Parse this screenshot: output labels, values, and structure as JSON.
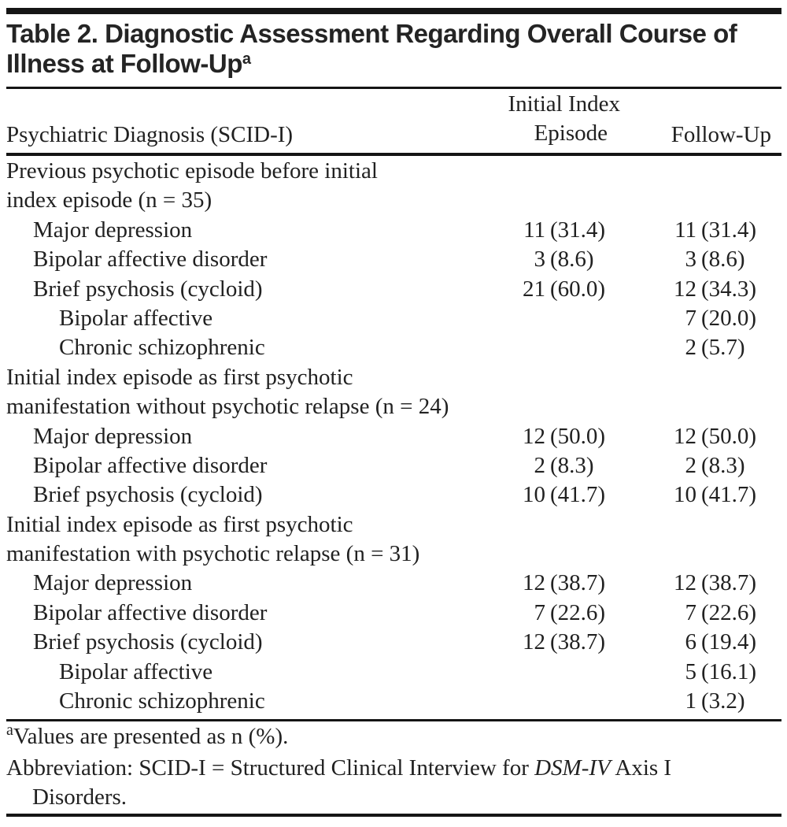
{
  "title": {
    "line1": "Table 2. Diagnostic Assessment Regarding Overall Course of",
    "line2": "Illness at Follow-Up",
    "footnote_marker": "a"
  },
  "columns": {
    "diagnosis": "Psychiatric Diagnosis (SCID-I)",
    "initial_line1": "Initial Index",
    "initial_line2": "Episode",
    "followup": "Follow-Up"
  },
  "rows": [
    {
      "level": 0,
      "label": "Previous psychotic episode before initial",
      "initial_n": "",
      "initial_pct": "",
      "followup_n": "",
      "followup_pct": ""
    },
    {
      "level": 0,
      "label": "index episode (n = 35)",
      "initial_n": "",
      "initial_pct": "",
      "followup_n": "",
      "followup_pct": ""
    },
    {
      "level": 1,
      "label": "Major depression",
      "initial_n": "11",
      "initial_pct": "(31.4)",
      "followup_n": "11",
      "followup_pct": "(31.4)"
    },
    {
      "level": 1,
      "label": "Bipolar affective disorder",
      "initial_n": "3",
      "initial_pct": "(8.6)",
      "followup_n": "3",
      "followup_pct": "(8.6)"
    },
    {
      "level": 1,
      "label": "Brief psychosis (cycloid)",
      "initial_n": "21",
      "initial_pct": "(60.0)",
      "followup_n": "12",
      "followup_pct": "(34.3)"
    },
    {
      "level": 2,
      "label": "Bipolar affective",
      "initial_n": "",
      "initial_pct": "",
      "followup_n": "7",
      "followup_pct": "(20.0)"
    },
    {
      "level": 2,
      "label": "Chronic schizophrenic",
      "initial_n": "",
      "initial_pct": "",
      "followup_n": "2",
      "followup_pct": "(5.7)"
    },
    {
      "level": 0,
      "label": "Initial index episode as first psychotic",
      "initial_n": "",
      "initial_pct": "",
      "followup_n": "",
      "followup_pct": ""
    },
    {
      "level": 0,
      "label": "manifestation without psychotic relapse (n = 24)",
      "initial_n": "",
      "initial_pct": "",
      "followup_n": "",
      "followup_pct": ""
    },
    {
      "level": 1,
      "label": "Major depression",
      "initial_n": "12",
      "initial_pct": "(50.0)",
      "followup_n": "12",
      "followup_pct": "(50.0)"
    },
    {
      "level": 1,
      "label": "Bipolar affective disorder",
      "initial_n": "2",
      "initial_pct": "(8.3)",
      "followup_n": "2",
      "followup_pct": "(8.3)"
    },
    {
      "level": 1,
      "label": "Brief psychosis (cycloid)",
      "initial_n": "10",
      "initial_pct": "(41.7)",
      "followup_n": "10",
      "followup_pct": "(41.7)"
    },
    {
      "level": 0,
      "label": "Initial index episode as first psychotic",
      "initial_n": "",
      "initial_pct": "",
      "followup_n": "",
      "followup_pct": ""
    },
    {
      "level": 0,
      "label": "manifestation with psychotic relapse (n = 31)",
      "initial_n": "",
      "initial_pct": "",
      "followup_n": "",
      "followup_pct": ""
    },
    {
      "level": 1,
      "label": "Major depression",
      "initial_n": "12",
      "initial_pct": "(38.7)",
      "followup_n": "12",
      "followup_pct": "(38.7)"
    },
    {
      "level": 1,
      "label": "Bipolar affective disorder",
      "initial_n": "7",
      "initial_pct": "(22.6)",
      "followup_n": "7",
      "followup_pct": "(22.6)"
    },
    {
      "level": 1,
      "label": "Brief psychosis (cycloid)",
      "initial_n": "12",
      "initial_pct": "(38.7)",
      "followup_n": "6",
      "followup_pct": "(19.4)"
    },
    {
      "level": 2,
      "label": "Bipolar affective",
      "initial_n": "",
      "initial_pct": "",
      "followup_n": "5",
      "followup_pct": "(16.1)"
    },
    {
      "level": 2,
      "label": "Chronic schizophrenic",
      "initial_n": "",
      "initial_pct": "",
      "followup_n": "1",
      "followup_pct": "(3.2)"
    }
  ],
  "footnotes": {
    "a_marker": "a",
    "a_text": "Values are presented as n (%).",
    "abbrev_pre": "Abbreviation: SCID-I = Structured Clinical Interview for ",
    "abbrev_italic": "DSM-IV",
    "abbrev_post": " Axis I",
    "abbrev_line2": "Disorders."
  },
  "colors": {
    "text": "#212121",
    "title_text": "#242424",
    "rule": "#151515",
    "background": "#ffffff"
  }
}
